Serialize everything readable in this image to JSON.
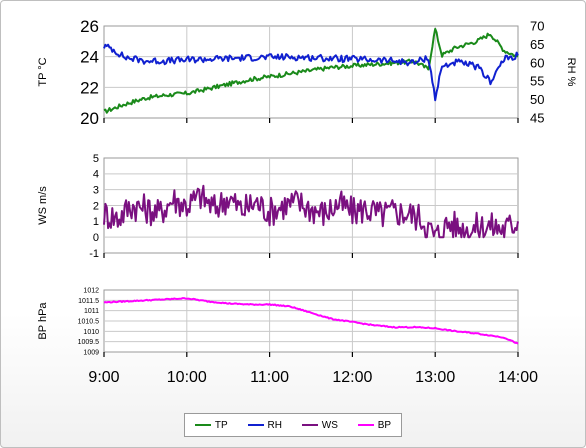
{
  "chart_data": [
    {
      "type": "line",
      "ylabel": "TP °C",
      "y2label": "RH %",
      "xlim": [
        "9:00",
        "14:00"
      ],
      "ylim": [
        20,
        26
      ],
      "y2lim": [
        45,
        70
      ],
      "yticks": [
        "20",
        "22",
        "24",
        "26"
      ],
      "y2ticks": [
        "45",
        "50",
        "55",
        "60",
        "65",
        "70"
      ],
      "series": [
        {
          "name": "TP",
          "axis": "left",
          "color": "#1a8a1a",
          "x": [
            "9:00",
            "9:15",
            "9:30",
            "9:45",
            "10:00",
            "10:15",
            "10:30",
            "10:45",
            "11:00",
            "11:15",
            "11:30",
            "11:45",
            "12:00",
            "12:15",
            "12:30",
            "12:45",
            "12:55",
            "13:00",
            "13:05",
            "13:15",
            "13:30",
            "13:40",
            "13:50",
            "14:00"
          ],
          "values": [
            20.4,
            20.9,
            21.3,
            21.5,
            21.6,
            21.9,
            22.2,
            22.5,
            22.7,
            22.9,
            23.1,
            23.3,
            23.4,
            23.5,
            23.6,
            23.7,
            23.2,
            25.8,
            24.1,
            24.6,
            25.0,
            25.5,
            24.4,
            24.0
          ]
        },
        {
          "name": "RH",
          "axis": "right",
          "color": "#1020d0",
          "x": [
            "9:00",
            "9:05",
            "9:15",
            "9:30",
            "9:45",
            "10:00",
            "10:15",
            "10:30",
            "10:45",
            "11:00",
            "11:15",
            "11:30",
            "11:45",
            "12:00",
            "12:15",
            "12:30",
            "12:45",
            "12:55",
            "13:00",
            "13:05",
            "13:15",
            "13:30",
            "13:40",
            "13:50",
            "14:00"
          ],
          "values": [
            64.5,
            64.0,
            61.5,
            60.5,
            60.5,
            60.8,
            61.0,
            61.2,
            61.4,
            61.5,
            61.6,
            61.4,
            61.2,
            61.0,
            60.8,
            60.5,
            60.0,
            61.5,
            50.5,
            59.0,
            60.2,
            59.0,
            55.0,
            61.0,
            62.0
          ]
        }
      ]
    },
    {
      "type": "line",
      "ylabel": "WS m/s",
      "xlim": [
        "9:00",
        "14:00"
      ],
      "ylim": [
        -1,
        5
      ],
      "yticks": [
        "-1",
        "0",
        "1",
        "2",
        "3",
        "4",
        "5"
      ],
      "series": [
        {
          "name": "WS",
          "color": "#7a1080",
          "x": [
            "9:00",
            "9:10",
            "9:20",
            "9:30",
            "9:40",
            "9:50",
            "10:00",
            "10:10",
            "10:20",
            "10:30",
            "10:40",
            "10:50",
            "11:00",
            "11:10",
            "11:20",
            "11:30",
            "11:40",
            "11:50",
            "12:00",
            "12:10",
            "12:20",
            "12:30",
            "12:40",
            "12:50",
            "13:00",
            "13:10",
            "13:20",
            "13:30",
            "13:40",
            "13:50",
            "14:00"
          ],
          "values": [
            1.5,
            1.2,
            2.0,
            1.8,
            1.5,
            2.4,
            2.0,
            2.6,
            1.8,
            2.5,
            1.7,
            2.2,
            1.6,
            2.0,
            2.2,
            1.8,
            1.5,
            2.1,
            1.6,
            1.8,
            1.4,
            1.6,
            1.5,
            1.2,
            0.0,
            0.9,
            0.5,
            0.6,
            0.7,
            0.5,
            1.0
          ]
        }
      ]
    },
    {
      "type": "line",
      "ylabel": "BP hPa",
      "xlim": [
        "9:00",
        "14:00"
      ],
      "ylim": [
        1009,
        1012
      ],
      "yticks": [
        "1009",
        "1009.5",
        "1010",
        "1010.5",
        "1011",
        "1011.5",
        "1012"
      ],
      "xticks": [
        "9:00",
        "10:00",
        "11:00",
        "12:00",
        "13:00",
        "14:00"
      ],
      "series": [
        {
          "name": "BP",
          "color": "#ff00ff",
          "x": [
            "9:00",
            "9:15",
            "9:30",
            "9:45",
            "10:00",
            "10:15",
            "10:30",
            "10:45",
            "11:00",
            "11:15",
            "11:30",
            "11:45",
            "12:00",
            "12:15",
            "12:30",
            "12:45",
            "13:00",
            "13:15",
            "13:30",
            "13:40",
            "13:50",
            "14:00"
          ],
          "values": [
            1011.4,
            1011.45,
            1011.5,
            1011.55,
            1011.6,
            1011.45,
            1011.35,
            1011.3,
            1011.3,
            1011.2,
            1010.9,
            1010.6,
            1010.45,
            1010.3,
            1010.2,
            1010.2,
            1010.15,
            1010.0,
            1009.9,
            1009.8,
            1009.7,
            1009.4
          ]
        }
      ]
    }
  ],
  "legend": [
    "TP",
    "RH",
    "WS",
    "BP"
  ],
  "colors": {
    "TP": "#1a8a1a",
    "RH": "#1020d0",
    "WS": "#7a1080",
    "BP": "#ff00ff"
  }
}
